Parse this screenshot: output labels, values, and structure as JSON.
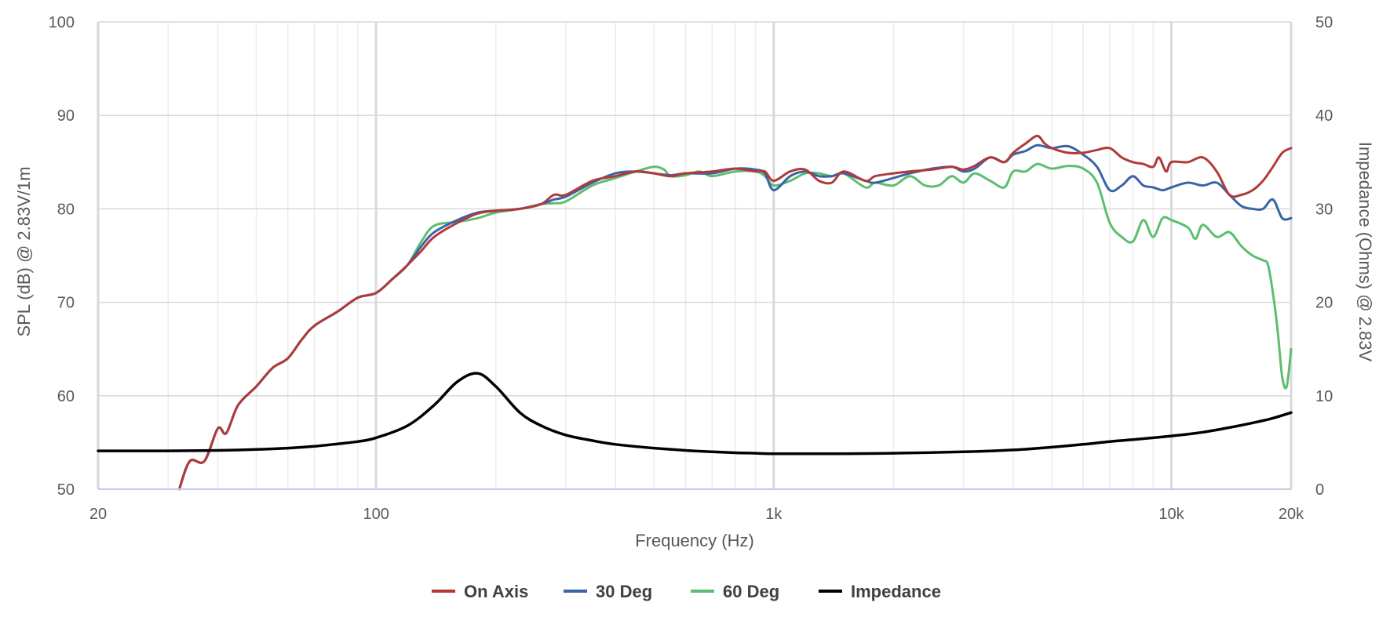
{
  "chart_data": {
    "type": "line",
    "title": "",
    "xlabel": "Frequency (Hz)",
    "ylabel": "SPL (dB) @ 2.83V/1m",
    "y2label": "Impedance (Ohms) @ 2.83V",
    "x_scale": "log",
    "xlim": [
      20,
      20000
    ],
    "ylim": [
      50,
      100
    ],
    "y2lim": [
      0,
      50
    ],
    "x_ticks": [
      {
        "value": 20,
        "label": "20"
      },
      {
        "value": 100,
        "label": "100"
      },
      {
        "value": 1000,
        "label": "1k"
      },
      {
        "value": 10000,
        "label": "10k"
      },
      {
        "value": 20000,
        "label": "20k"
      }
    ],
    "y_ticks": [
      {
        "value": 50,
        "label": "50"
      },
      {
        "value": 60,
        "label": "60"
      },
      {
        "value": 70,
        "label": "70"
      },
      {
        "value": 80,
        "label": "80"
      },
      {
        "value": 90,
        "label": "90"
      },
      {
        "value": 100,
        "label": "100"
      }
    ],
    "y2_ticks": [
      {
        "value": 0,
        "label": "0"
      },
      {
        "value": 10,
        "label": "10"
      },
      {
        "value": 20,
        "label": "20"
      },
      {
        "value": 30,
        "label": "30"
      },
      {
        "value": 40,
        "label": "40"
      },
      {
        "value": 50,
        "label": "50"
      }
    ],
    "grid": true,
    "legend_position": "bottom-center",
    "series": [
      {
        "name": "On Axis",
        "color": "#b03a3a",
        "axis": "left",
        "points": [
          [
            32,
            50
          ],
          [
            34,
            53
          ],
          [
            37,
            53
          ],
          [
            40,
            56.5
          ],
          [
            42,
            56
          ],
          [
            45,
            59
          ],
          [
            50,
            61
          ],
          [
            55,
            63
          ],
          [
            60,
            64
          ],
          [
            65,
            66
          ],
          [
            70,
            67.5
          ],
          [
            80,
            69
          ],
          [
            90,
            70.5
          ],
          [
            100,
            71
          ],
          [
            110,
            72.5
          ],
          [
            120,
            74
          ],
          [
            130,
            75.5
          ],
          [
            140,
            77
          ],
          [
            160,
            78.5
          ],
          [
            180,
            79.5
          ],
          [
            200,
            79.8
          ],
          [
            230,
            80
          ],
          [
            260,
            80.5
          ],
          [
            280,
            81.5
          ],
          [
            300,
            81.5
          ],
          [
            350,
            83
          ],
          [
            400,
            83.5
          ],
          [
            450,
            84
          ],
          [
            500,
            83.8
          ],
          [
            550,
            83.5
          ],
          [
            600,
            83.8
          ],
          [
            700,
            84
          ],
          [
            800,
            84.3
          ],
          [
            900,
            84
          ],
          [
            950,
            84
          ],
          [
            1000,
            83
          ],
          [
            1100,
            84
          ],
          [
            1200,
            84.2
          ],
          [
            1300,
            83
          ],
          [
            1400,
            82.8
          ],
          [
            1500,
            84
          ],
          [
            1700,
            83
          ],
          [
            1800,
            83.5
          ],
          [
            2000,
            83.8
          ],
          [
            2200,
            84
          ],
          [
            2500,
            84.2
          ],
          [
            2800,
            84.5
          ],
          [
            3000,
            84.2
          ],
          [
            3200,
            84.6
          ],
          [
            3500,
            85.5
          ],
          [
            3800,
            85
          ],
          [
            4000,
            86
          ],
          [
            4300,
            87
          ],
          [
            4600,
            87.8
          ],
          [
            4800,
            87
          ],
          [
            5000,
            86.5
          ],
          [
            5500,
            86
          ],
          [
            6000,
            86
          ],
          [
            6500,
            86.3
          ],
          [
            7000,
            86.5
          ],
          [
            7500,
            85.5
          ],
          [
            8000,
            85
          ],
          [
            8500,
            84.8
          ],
          [
            9000,
            84.5
          ],
          [
            9300,
            85.5
          ],
          [
            9700,
            84
          ],
          [
            10000,
            85
          ],
          [
            11000,
            85
          ],
          [
            12000,
            85.5
          ],
          [
            13000,
            84
          ],
          [
            14000,
            81.5
          ],
          [
            15000,
            81.5
          ],
          [
            16000,
            82
          ],
          [
            17000,
            83
          ],
          [
            18000,
            84.5
          ],
          [
            19000,
            86
          ],
          [
            20000,
            86.5
          ]
        ]
      },
      {
        "name": "30 Deg",
        "color": "#3a64a6",
        "axis": "left",
        "points": [
          [
            32,
            50
          ],
          [
            34,
            53
          ],
          [
            37,
            53
          ],
          [
            40,
            56.5
          ],
          [
            42,
            56
          ],
          [
            45,
            59
          ],
          [
            50,
            61
          ],
          [
            55,
            63
          ],
          [
            60,
            64
          ],
          [
            65,
            66
          ],
          [
            70,
            67.5
          ],
          [
            80,
            69
          ],
          [
            90,
            70.5
          ],
          [
            100,
            71
          ],
          [
            110,
            72.5
          ],
          [
            120,
            74
          ],
          [
            130,
            76
          ],
          [
            140,
            77.5
          ],
          [
            160,
            78.8
          ],
          [
            180,
            79.6
          ],
          [
            200,
            79.8
          ],
          [
            230,
            80
          ],
          [
            260,
            80.5
          ],
          [
            280,
            81
          ],
          [
            300,
            81.3
          ],
          [
            350,
            82.8
          ],
          [
            400,
            83.8
          ],
          [
            450,
            84
          ],
          [
            500,
            83.8
          ],
          [
            550,
            83.6
          ],
          [
            600,
            83.8
          ],
          [
            700,
            83.8
          ],
          [
            800,
            84.3
          ],
          [
            900,
            84.2
          ],
          [
            950,
            83.8
          ],
          [
            1000,
            82
          ],
          [
            1100,
            83.5
          ],
          [
            1200,
            84
          ],
          [
            1300,
            83.5
          ],
          [
            1400,
            83.5
          ],
          [
            1500,
            83.8
          ],
          [
            1700,
            83
          ],
          [
            1800,
            82.8
          ],
          [
            2000,
            83.3
          ],
          [
            2200,
            83.8
          ],
          [
            2500,
            84.3
          ],
          [
            2800,
            84.5
          ],
          [
            3000,
            84
          ],
          [
            3200,
            84.3
          ],
          [
            3500,
            85.5
          ],
          [
            3800,
            85
          ],
          [
            4000,
            85.8
          ],
          [
            4300,
            86.2
          ],
          [
            4600,
            86.8
          ],
          [
            5000,
            86.5
          ],
          [
            5500,
            86.7
          ],
          [
            6000,
            85.8
          ],
          [
            6500,
            84.5
          ],
          [
            7000,
            82
          ],
          [
            7500,
            82.5
          ],
          [
            8000,
            83.5
          ],
          [
            8500,
            82.5
          ],
          [
            9000,
            82.3
          ],
          [
            9500,
            82
          ],
          [
            10000,
            82.3
          ],
          [
            11000,
            82.8
          ],
          [
            12000,
            82.5
          ],
          [
            13000,
            82.8
          ],
          [
            14000,
            81.5
          ],
          [
            15000,
            80.3
          ],
          [
            16000,
            80
          ],
          [
            17000,
            80
          ],
          [
            18000,
            81
          ],
          [
            19000,
            79
          ],
          [
            20000,
            79
          ]
        ]
      },
      {
        "name": "60 Deg",
        "color": "#5cbe6e",
        "axis": "left",
        "points": [
          [
            32,
            50
          ],
          [
            34,
            53
          ],
          [
            37,
            53
          ],
          [
            40,
            56.5
          ],
          [
            42,
            56
          ],
          [
            45,
            59
          ],
          [
            50,
            61
          ],
          [
            55,
            63
          ],
          [
            60,
            64
          ],
          [
            65,
            66
          ],
          [
            70,
            67.5
          ],
          [
            80,
            69
          ],
          [
            90,
            70.5
          ],
          [
            100,
            71
          ],
          [
            110,
            72.5
          ],
          [
            120,
            74
          ],
          [
            130,
            76.5
          ],
          [
            140,
            78.2
          ],
          [
            160,
            78.6
          ],
          [
            180,
            79
          ],
          [
            200,
            79.6
          ],
          [
            230,
            80
          ],
          [
            260,
            80.5
          ],
          [
            280,
            80.6
          ],
          [
            300,
            80.8
          ],
          [
            350,
            82.5
          ],
          [
            400,
            83.3
          ],
          [
            450,
            84
          ],
          [
            500,
            84.5
          ],
          [
            530,
            84.2
          ],
          [
            550,
            83.5
          ],
          [
            600,
            83.6
          ],
          [
            650,
            84
          ],
          [
            700,
            83.5
          ],
          [
            800,
            84
          ],
          [
            900,
            84
          ],
          [
            950,
            83.5
          ],
          [
            1000,
            82.5
          ],
          [
            1100,
            83
          ],
          [
            1200,
            83.8
          ],
          [
            1300,
            83.8
          ],
          [
            1400,
            83.5
          ],
          [
            1500,
            83.8
          ],
          [
            1700,
            82.3
          ],
          [
            1800,
            82.8
          ],
          [
            2000,
            82.5
          ],
          [
            2200,
            83.5
          ],
          [
            2400,
            82.5
          ],
          [
            2600,
            82.5
          ],
          [
            2800,
            83.5
          ],
          [
            3000,
            82.8
          ],
          [
            3200,
            83.8
          ],
          [
            3500,
            83
          ],
          [
            3800,
            82.3
          ],
          [
            4000,
            84
          ],
          [
            4300,
            84
          ],
          [
            4600,
            84.8
          ],
          [
            5000,
            84.3
          ],
          [
            5500,
            84.6
          ],
          [
            6000,
            84.3
          ],
          [
            6500,
            82.8
          ],
          [
            7000,
            78.5
          ],
          [
            7500,
            77
          ],
          [
            8000,
            76.5
          ],
          [
            8500,
            78.8
          ],
          [
            9000,
            77
          ],
          [
            9500,
            79
          ],
          [
            10000,
            78.8
          ],
          [
            11000,
            78
          ],
          [
            11500,
            76.8
          ],
          [
            12000,
            78.3
          ],
          [
            13000,
            77
          ],
          [
            14000,
            77.5
          ],
          [
            15000,
            76
          ],
          [
            16000,
            75
          ],
          [
            17000,
            74.5
          ],
          [
            17500,
            74
          ],
          [
            18000,
            71
          ],
          [
            18500,
            67
          ],
          [
            19000,
            62
          ],
          [
            19500,
            61
          ],
          [
            20000,
            65
          ]
        ]
      },
      {
        "name": "Impedance",
        "color": "#000000",
        "axis": "right",
        "points": [
          [
            20,
            4.1
          ],
          [
            30,
            4.1
          ],
          [
            40,
            4.15
          ],
          [
            50,
            4.25
          ],
          [
            60,
            4.4
          ],
          [
            70,
            4.6
          ],
          [
            80,
            4.85
          ],
          [
            90,
            5.1
          ],
          [
            100,
            5.5
          ],
          [
            120,
            6.8
          ],
          [
            140,
            9
          ],
          [
            160,
            11.5
          ],
          [
            180,
            12.4
          ],
          [
            200,
            11
          ],
          [
            230,
            8.2
          ],
          [
            260,
            6.8
          ],
          [
            300,
            5.8
          ],
          [
            350,
            5.2
          ],
          [
            400,
            4.8
          ],
          [
            500,
            4.4
          ],
          [
            600,
            4.15
          ],
          [
            700,
            4
          ],
          [
            800,
            3.9
          ],
          [
            900,
            3.85
          ],
          [
            1000,
            3.8
          ],
          [
            1500,
            3.8
          ],
          [
            2000,
            3.85
          ],
          [
            3000,
            4
          ],
          [
            4000,
            4.2
          ],
          [
            5000,
            4.5
          ],
          [
            6000,
            4.8
          ],
          [
            7000,
            5.1
          ],
          [
            8000,
            5.3
          ],
          [
            9000,
            5.5
          ],
          [
            10000,
            5.7
          ],
          [
            12000,
            6.1
          ],
          [
            14000,
            6.6
          ],
          [
            16000,
            7.1
          ],
          [
            18000,
            7.6
          ],
          [
            20000,
            8.2
          ]
        ]
      }
    ]
  }
}
